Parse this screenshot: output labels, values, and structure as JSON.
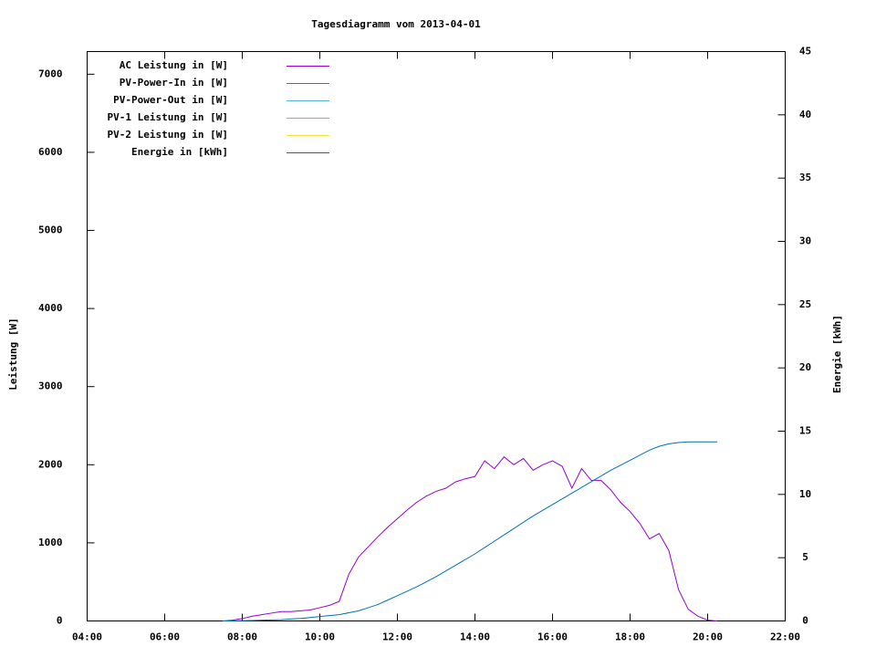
{
  "chart_data": {
    "type": "line",
    "title": "Tagesdiagramm vom 2013-04-01",
    "y_label": "Leistung [W]",
    "y2_label": "Energie [kWh]",
    "x": [
      7.5,
      7.75,
      8,
      8.25,
      8.5,
      8.75,
      9,
      9.25,
      9.5,
      9.75,
      10,
      10.25,
      10.5,
      10.75,
      11,
      11.25,
      11.5,
      11.75,
      12,
      12.25,
      12.5,
      12.75,
      13,
      13.25,
      13.5,
      13.75,
      14,
      14.25,
      14.5,
      14.75,
      15,
      15.25,
      15.5,
      15.75,
      16,
      16.25,
      16.5,
      16.75,
      17,
      17.25,
      17.5,
      17.75,
      18,
      18.25,
      18.5,
      18.75,
      19,
      19.25,
      19.5,
      19.75,
      20,
      20.25
    ],
    "xlim": [
      4,
      22
    ],
    "xticks": [
      {
        "value": 4,
        "label": "04:00"
      },
      {
        "value": 6,
        "label": "06:00"
      },
      {
        "value": 8,
        "label": "08:00"
      },
      {
        "value": 10,
        "label": "10:00"
      },
      {
        "value": 12,
        "label": "12:00"
      },
      {
        "value": 14,
        "label": "14:00"
      },
      {
        "value": 16,
        "label": "16:00"
      },
      {
        "value": 18,
        "label": "18:00"
      },
      {
        "value": 20,
        "label": "20:00"
      },
      {
        "value": 22,
        "label": "22:00"
      }
    ],
    "ylim": [
      0,
      7290
    ],
    "yticks": [
      0,
      1000,
      2000,
      3000,
      4000,
      5000,
      6000,
      7000
    ],
    "y2lim": [
      0,
      45
    ],
    "y2ticks": [
      0,
      5,
      10,
      15,
      20,
      25,
      30,
      35,
      40,
      45
    ],
    "legend": "upper left",
    "series": [
      {
        "name": "AC Leistung in [W]",
        "color": "#9400d3",
        "values": [
          0,
          10,
          30,
          60,
          80,
          100,
          120,
          120,
          130,
          140,
          170,
          200,
          250,
          600,
          820,
          950,
          1080,
          1200,
          1310,
          1420,
          1520,
          1600,
          1660,
          1700,
          1780,
          1820,
          1850,
          2050,
          1950,
          2100,
          2000,
          2080,
          1930,
          2000,
          2050,
          1980,
          1700,
          1950,
          1800,
          1800,
          1680,
          1520,
          1400,
          1250,
          1050,
          1120,
          900,
          400,
          150,
          60,
          10,
          0
        ]
      },
      {
        "name": "PV-Power-In in [W]",
        "color": "#009e73",
        "values": [
          null,
          null,
          null,
          null,
          null,
          null,
          null,
          null,
          null,
          null,
          null,
          null,
          null,
          null,
          null,
          null,
          null,
          null,
          null,
          null,
          null,
          null,
          null,
          null,
          null,
          null,
          null,
          null,
          null,
          null,
          null,
          null,
          null,
          null,
          null,
          null,
          null,
          null,
          null,
          null,
          null,
          null,
          null,
          null,
          null,
          null,
          null,
          null,
          null,
          null,
          null,
          null
        ]
      },
      {
        "name": "PV-Power-Out in [W]",
        "color": "#56b4e9",
        "values": [
          null,
          null,
          null,
          null,
          null,
          null,
          null,
          null,
          null,
          null,
          null,
          null,
          null,
          null,
          null,
          null,
          null,
          null,
          null,
          null,
          null,
          null,
          null,
          null,
          null,
          null,
          null,
          null,
          null,
          null,
          null,
          null,
          null,
          null,
          null,
          null,
          null,
          null,
          null,
          null,
          null,
          null,
          null,
          null,
          null,
          null,
          null,
          null,
          null,
          null,
          null,
          null
        ]
      },
      {
        "name": "PV-1 Leistung in [W]",
        "color": "#e69f00",
        "values": [
          null,
          null,
          null,
          null,
          null,
          null,
          null,
          null,
          null,
          null,
          null,
          null,
          null,
          null,
          null,
          null,
          null,
          null,
          null,
          null,
          null,
          null,
          null,
          null,
          null,
          null,
          null,
          null,
          null,
          null,
          null,
          null,
          null,
          null,
          null,
          null,
          null,
          null,
          null,
          null,
          null,
          null,
          null,
          null,
          null,
          null,
          null,
          null,
          null,
          null,
          null,
          null
        ]
      },
      {
        "name": "PV-2 Leistung in [W]",
        "color": "#f0e442",
        "values": [
          null,
          null,
          null,
          null,
          null,
          null,
          null,
          null,
          null,
          null,
          null,
          null,
          null,
          null,
          null,
          null,
          null,
          null,
          null,
          null,
          null,
          null,
          null,
          null,
          null,
          null,
          null,
          null,
          null,
          null,
          null,
          null,
          null,
          null,
          null,
          null,
          null,
          null,
          null,
          null,
          null,
          null,
          null,
          null,
          null,
          null,
          null,
          null,
          null,
          null,
          null,
          null
        ]
      },
      {
        "name": "Energie in [kWh]",
        "color": "#0072b2",
        "axis": "y2",
        "values": [
          0,
          0.01,
          0.02,
          0.04,
          0.06,
          0.08,
          0.1,
          0.15,
          0.2,
          0.27,
          0.35,
          0.42,
          0.5,
          0.65,
          0.8,
          1.05,
          1.3,
          1.65,
          2.0,
          2.35,
          2.7,
          3.1,
          3.5,
          3.95,
          4.4,
          4.85,
          5.3,
          5.8,
          6.3,
          6.8,
          7.3,
          7.8,
          8.3,
          8.75,
          9.2,
          9.65,
          10.1,
          10.55,
          11.0,
          11.45,
          11.9,
          12.3,
          12.7,
          13.1,
          13.5,
          13.8,
          14.0,
          14.1,
          14.15,
          14.15,
          14.15,
          14.15
        ]
      }
    ]
  }
}
